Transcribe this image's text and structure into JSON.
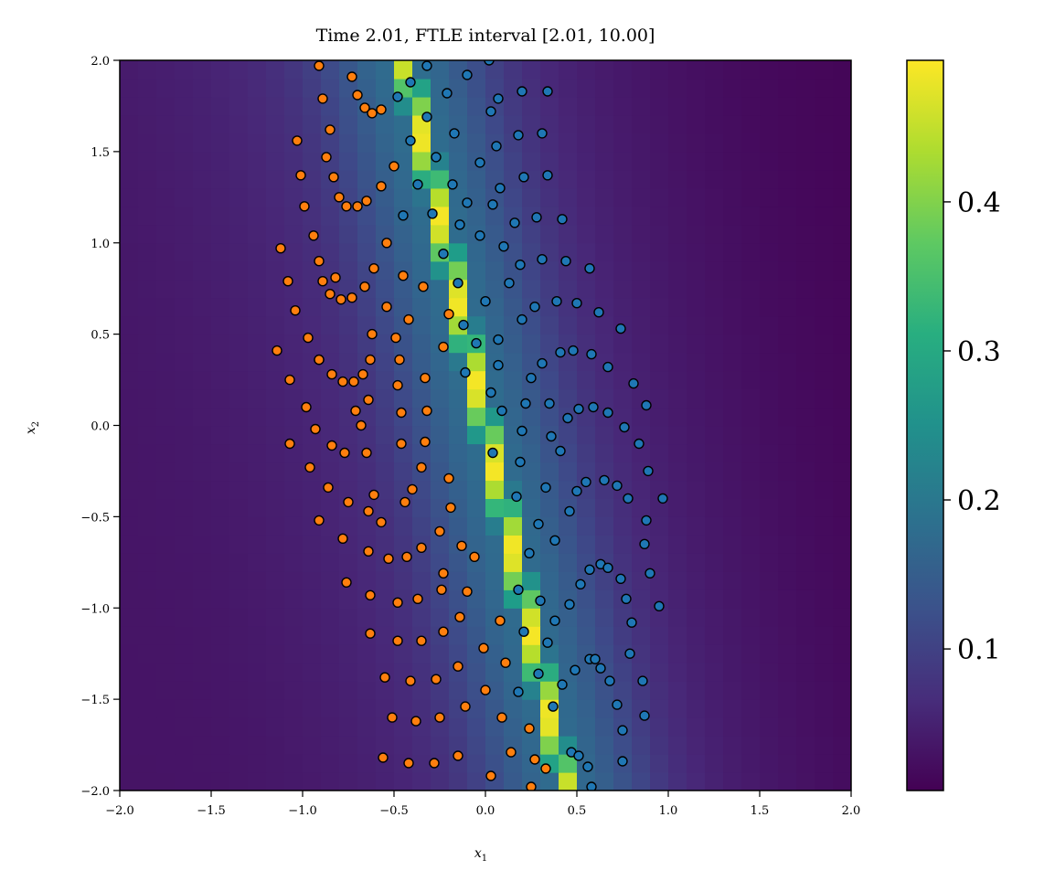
{
  "chart_data": {
    "type": "heatmap",
    "title": "Time 2.01, FTLE interval [2.01, 10.00]",
    "xlabel": "x",
    "xlabel_sub": "1",
    "ylabel": "x",
    "ylabel_sub": "2",
    "xlim": [
      -2.0,
      2.0
    ],
    "ylim": [
      -2.0,
      2.0
    ],
    "x_ticks": [
      -2.0,
      -1.5,
      -1.0,
      -0.5,
      0.0,
      0.5,
      1.0,
      1.5,
      2.0
    ],
    "y_ticks": [
      -2.0,
      -1.5,
      -1.0,
      -0.5,
      0.0,
      0.5,
      1.0,
      1.5,
      2.0
    ],
    "x_tick_labels": [
      "−2.0",
      "−1.5",
      "−1.0",
      "−0.5",
      "0.0",
      "0.5",
      "1.0",
      "1.5",
      "2.0"
    ],
    "y_tick_labels": [
      "−2.0",
      "−1.5",
      "−1.0",
      "−0.5",
      "0.0",
      "0.5",
      "1.0",
      "1.5",
      "2.0"
    ],
    "grid": false,
    "colormap": "viridis",
    "colorbar": {
      "range": [
        0.005,
        0.495
      ],
      "ticks": [
        0.1,
        0.2,
        0.3,
        0.4
      ],
      "tick_labels": [
        "0.1",
        "0.2",
        "0.3",
        "0.4"
      ]
    },
    "heatmap": {
      "resolution": [
        40,
        40
      ],
      "ridge_center_line": {
        "slope_dx_dy": -0.22,
        "x_at_y0": 0.0
      },
      "ridge_peak": 0.49,
      "ridge_width": 0.055,
      "background_left": 0.03,
      "background_right": 0.01
    },
    "series": [
      {
        "color": "#ff7f0e",
        "points": [
          [
            -0.91,
            1.97
          ],
          [
            -0.73,
            1.91
          ],
          [
            -0.7,
            1.81
          ],
          [
            -0.66,
            1.74
          ],
          [
            -0.62,
            1.71
          ],
          [
            -0.57,
            1.73
          ],
          [
            -0.89,
            1.79
          ],
          [
            -1.03,
            1.56
          ],
          [
            -0.85,
            1.62
          ],
          [
            -0.5,
            1.42
          ],
          [
            -0.87,
            1.47
          ],
          [
            -0.83,
            1.36
          ],
          [
            -0.57,
            1.31
          ],
          [
            -0.8,
            1.25
          ],
          [
            -0.76,
            1.2
          ],
          [
            -0.7,
            1.2
          ],
          [
            -0.65,
            1.23
          ],
          [
            -1.01,
            1.37
          ],
          [
            -0.99,
            1.2
          ],
          [
            -0.94,
            1.04
          ],
          [
            -1.12,
            0.97
          ],
          [
            -0.91,
            0.9
          ],
          [
            -0.82,
            0.81
          ],
          [
            -0.54,
            1.0
          ],
          [
            -0.45,
            0.82
          ],
          [
            -0.61,
            0.86
          ],
          [
            -1.08,
            0.79
          ],
          [
            -0.89,
            0.79
          ],
          [
            -0.85,
            0.72
          ],
          [
            -0.79,
            0.69
          ],
          [
            -0.73,
            0.7
          ],
          [
            -0.66,
            0.76
          ],
          [
            -0.54,
            0.65
          ],
          [
            -0.34,
            0.76
          ],
          [
            -0.2,
            0.61
          ],
          [
            -1.04,
            0.63
          ],
          [
            -0.97,
            0.48
          ],
          [
            -1.14,
            0.41
          ],
          [
            -0.91,
            0.36
          ],
          [
            -0.62,
            0.5
          ],
          [
            -0.42,
            0.58
          ],
          [
            -0.49,
            0.48
          ],
          [
            -0.63,
            0.36
          ],
          [
            -0.91,
            0.36
          ],
          [
            -0.84,
            0.28
          ],
          [
            -0.78,
            0.24
          ],
          [
            -0.72,
            0.24
          ],
          [
            -0.67,
            0.28
          ],
          [
            -1.07,
            0.25
          ],
          [
            -0.47,
            0.36
          ],
          [
            -0.33,
            0.26
          ],
          [
            -0.23,
            0.43
          ],
          [
            -0.98,
            0.1
          ],
          [
            -0.48,
            0.22
          ],
          [
            -0.64,
            0.14
          ],
          [
            -0.46,
            0.07
          ],
          [
            -0.32,
            0.08
          ],
          [
            -0.93,
            -0.02
          ],
          [
            -0.71,
            0.08
          ],
          [
            -0.68,
            0.0
          ],
          [
            -1.07,
            -0.1
          ],
          [
            -0.84,
            -0.11
          ],
          [
            -0.77,
            -0.15
          ],
          [
            -0.65,
            -0.15
          ],
          [
            -0.33,
            -0.09
          ],
          [
            -0.46,
            -0.1
          ],
          [
            -0.96,
            -0.23
          ],
          [
            -0.35,
            -0.23
          ],
          [
            -0.2,
            -0.29
          ],
          [
            -0.86,
            -0.34
          ],
          [
            -0.75,
            -0.42
          ],
          [
            -0.61,
            -0.38
          ],
          [
            -0.4,
            -0.35
          ],
          [
            -0.44,
            -0.42
          ],
          [
            -0.19,
            -0.45
          ],
          [
            -0.91,
            -0.52
          ],
          [
            -0.64,
            -0.47
          ],
          [
            -0.57,
            -0.53
          ],
          [
            -0.78,
            -0.62
          ],
          [
            -0.64,
            -0.69
          ],
          [
            -0.53,
            -0.73
          ],
          [
            -0.43,
            -0.72
          ],
          [
            -0.35,
            -0.67
          ],
          [
            -0.25,
            -0.58
          ],
          [
            -0.13,
            -0.66
          ],
          [
            -0.76,
            -0.86
          ],
          [
            -0.23,
            -0.81
          ],
          [
            -0.06,
            -0.72
          ],
          [
            -0.63,
            -0.93
          ],
          [
            -0.48,
            -0.97
          ],
          [
            -0.37,
            -0.95
          ],
          [
            -0.24,
            -0.9
          ],
          [
            -0.1,
            -0.91
          ],
          [
            -0.14,
            -1.05
          ],
          [
            -0.63,
            -1.14
          ],
          [
            -0.48,
            -1.18
          ],
          [
            -0.35,
            -1.18
          ],
          [
            -0.23,
            -1.13
          ],
          [
            0.08,
            -1.07
          ],
          [
            -0.01,
            -1.22
          ],
          [
            -0.55,
            -1.38
          ],
          [
            -0.41,
            -1.4
          ],
          [
            -0.27,
            -1.39
          ],
          [
            -0.15,
            -1.32
          ],
          [
            0.11,
            -1.3
          ],
          [
            -0.51,
            -1.6
          ],
          [
            -0.38,
            -1.62
          ],
          [
            -0.25,
            -1.6
          ],
          [
            -0.11,
            -1.54
          ],
          [
            0.0,
            -1.45
          ],
          [
            0.09,
            -1.6
          ],
          [
            0.24,
            -1.66
          ],
          [
            -0.56,
            -1.82
          ],
          [
            -0.42,
            -1.85
          ],
          [
            -0.28,
            -1.85
          ],
          [
            -0.15,
            -1.81
          ],
          [
            0.14,
            -1.79
          ],
          [
            0.27,
            -1.83
          ],
          [
            0.33,
            -1.88
          ],
          [
            0.03,
            -1.92
          ],
          [
            0.25,
            -1.98
          ]
        ]
      },
      {
        "color": "#1f77b4",
        "points": [
          [
            -0.32,
            1.97
          ],
          [
            -0.41,
            1.88
          ],
          [
            -0.21,
            1.82
          ],
          [
            -0.1,
            1.92
          ],
          [
            0.02,
            2.0
          ],
          [
            -0.48,
            1.8
          ],
          [
            0.07,
            1.79
          ],
          [
            0.2,
            1.83
          ],
          [
            0.34,
            1.83
          ],
          [
            -0.32,
            1.69
          ],
          [
            -0.41,
            1.56
          ],
          [
            -0.17,
            1.6
          ],
          [
            0.03,
            1.72
          ],
          [
            0.18,
            1.59
          ],
          [
            0.31,
            1.6
          ],
          [
            -0.27,
            1.47
          ],
          [
            -0.03,
            1.44
          ],
          [
            0.06,
            1.53
          ],
          [
            0.21,
            1.36
          ],
          [
            0.34,
            1.37
          ],
          [
            -0.37,
            1.32
          ],
          [
            -0.18,
            1.32
          ],
          [
            0.08,
            1.3
          ],
          [
            -0.29,
            1.16
          ],
          [
            -0.1,
            1.22
          ],
          [
            -0.45,
            1.15
          ],
          [
            -0.14,
            1.1
          ],
          [
            0.04,
            1.21
          ],
          [
            0.16,
            1.11
          ],
          [
            0.28,
            1.14
          ],
          [
            0.42,
            1.13
          ],
          [
            -0.23,
            0.94
          ],
          [
            -0.03,
            1.04
          ],
          [
            0.1,
            0.98
          ],
          [
            0.19,
            0.88
          ],
          [
            0.31,
            0.91
          ],
          [
            0.44,
            0.9
          ],
          [
            0.57,
            0.86
          ],
          [
            -0.15,
            0.78
          ],
          [
            0.13,
            0.78
          ],
          [
            0.0,
            0.68
          ],
          [
            0.2,
            0.58
          ],
          [
            0.27,
            0.65
          ],
          [
            0.39,
            0.68
          ],
          [
            0.5,
            0.67
          ],
          [
            0.62,
            0.62
          ],
          [
            0.74,
            0.53
          ],
          [
            -0.12,
            0.55
          ],
          [
            0.07,
            0.47
          ],
          [
            -0.05,
            0.45
          ],
          [
            0.25,
            0.26
          ],
          [
            0.31,
            0.34
          ],
          [
            0.41,
            0.4
          ],
          [
            0.48,
            0.41
          ],
          [
            0.58,
            0.39
          ],
          [
            0.67,
            0.32
          ],
          [
            0.81,
            0.23
          ],
          [
            0.07,
            0.33
          ],
          [
            -0.11,
            0.29
          ],
          [
            0.03,
            0.18
          ],
          [
            0.09,
            0.08
          ],
          [
            0.22,
            0.12
          ],
          [
            0.35,
            0.12
          ],
          [
            0.45,
            0.04
          ],
          [
            0.51,
            0.09
          ],
          [
            0.59,
            0.1
          ],
          [
            0.67,
            0.07
          ],
          [
            0.76,
            -0.01
          ],
          [
            0.88,
            0.11
          ],
          [
            0.2,
            -0.03
          ],
          [
            0.36,
            -0.06
          ],
          [
            0.41,
            -0.14
          ],
          [
            0.84,
            -0.1
          ],
          [
            0.04,
            -0.15
          ],
          [
            0.19,
            -0.2
          ],
          [
            0.5,
            -0.36
          ],
          [
            0.55,
            -0.31
          ],
          [
            0.65,
            -0.3
          ],
          [
            0.72,
            -0.33
          ],
          [
            0.78,
            -0.4
          ],
          [
            0.89,
            -0.25
          ],
          [
            0.97,
            -0.4
          ],
          [
            0.33,
            -0.34
          ],
          [
            0.46,
            -0.47
          ],
          [
            0.17,
            -0.39
          ],
          [
            0.29,
            -0.54
          ],
          [
            0.88,
            -0.52
          ],
          [
            0.38,
            -0.63
          ],
          [
            0.24,
            -0.7
          ],
          [
            0.57,
            -0.79
          ],
          [
            0.63,
            -0.76
          ],
          [
            0.67,
            -0.78
          ],
          [
            0.74,
            -0.84
          ],
          [
            0.87,
            -0.65
          ],
          [
            0.9,
            -0.81
          ],
          [
            0.52,
            -0.87
          ],
          [
            0.77,
            -0.95
          ],
          [
            0.18,
            -0.9
          ],
          [
            0.46,
            -0.98
          ],
          [
            0.3,
            -0.96
          ],
          [
            0.38,
            -1.07
          ],
          [
            0.95,
            -0.99
          ],
          [
            0.8,
            -1.08
          ],
          [
            0.21,
            -1.13
          ],
          [
            0.34,
            -1.19
          ],
          [
            0.57,
            -1.28
          ],
          [
            0.6,
            -1.28
          ],
          [
            0.49,
            -1.34
          ],
          [
            0.63,
            -1.33
          ],
          [
            0.68,
            -1.4
          ],
          [
            0.72,
            -1.53
          ],
          [
            0.79,
            -1.25
          ],
          [
            0.86,
            -1.4
          ],
          [
            0.42,
            -1.42
          ],
          [
            0.29,
            -1.36
          ],
          [
            0.18,
            -1.46
          ],
          [
            0.37,
            -1.54
          ],
          [
            0.75,
            -1.67
          ],
          [
            0.87,
            -1.59
          ],
          [
            0.47,
            -1.79
          ],
          [
            0.51,
            -1.81
          ],
          [
            0.56,
            -1.87
          ],
          [
            0.75,
            -1.84
          ],
          [
            0.58,
            -1.98
          ]
        ]
      }
    ]
  }
}
